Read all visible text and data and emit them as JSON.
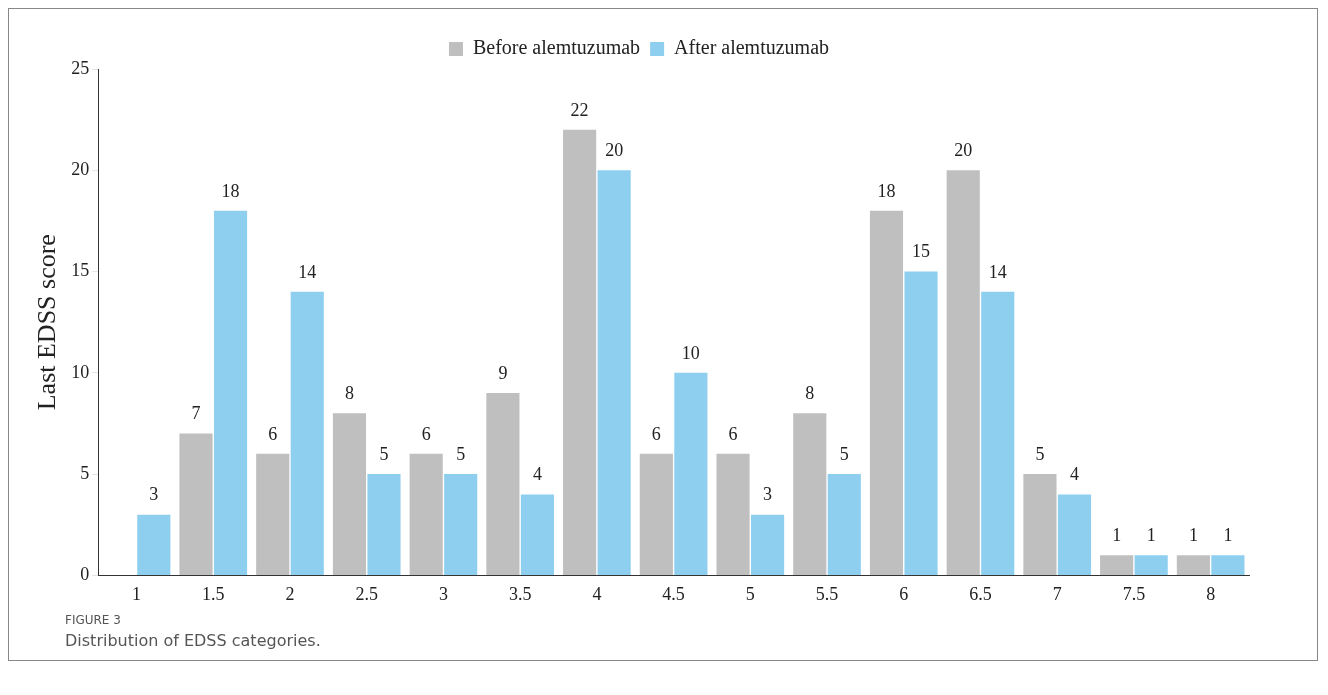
{
  "chart_data": {
    "type": "bar",
    "ylabel": "Last EDSS score",
    "categories": [
      "1",
      "1.5",
      "2",
      "2.5",
      "3",
      "3.5",
      "4",
      "4.5",
      "5",
      "5.5",
      "6",
      "6.5",
      "7",
      "7.5",
      "8"
    ],
    "series": [
      {
        "name": "Before alemtuzumab",
        "color": "#bfbfbf",
        "values": [
          null,
          7,
          6,
          8,
          6,
          9,
          22,
          6,
          6,
          8,
          18,
          20,
          5,
          1,
          1
        ]
      },
      {
        "name": "After alemtuzumab",
        "color": "#8ecff0",
        "values": [
          3,
          18,
          14,
          5,
          5,
          4,
          20,
          10,
          3,
          5,
          15,
          14,
          4,
          1,
          1
        ]
      }
    ],
    "ylim": [
      0,
      25
    ],
    "yticks": [
      0,
      5,
      10,
      15,
      20,
      25
    ],
    "grid": false,
    "legend": "top",
    "data_labels": true,
    "annotations": [
      "FIGURE 3",
      "Distribution of EDSS categories."
    ]
  }
}
